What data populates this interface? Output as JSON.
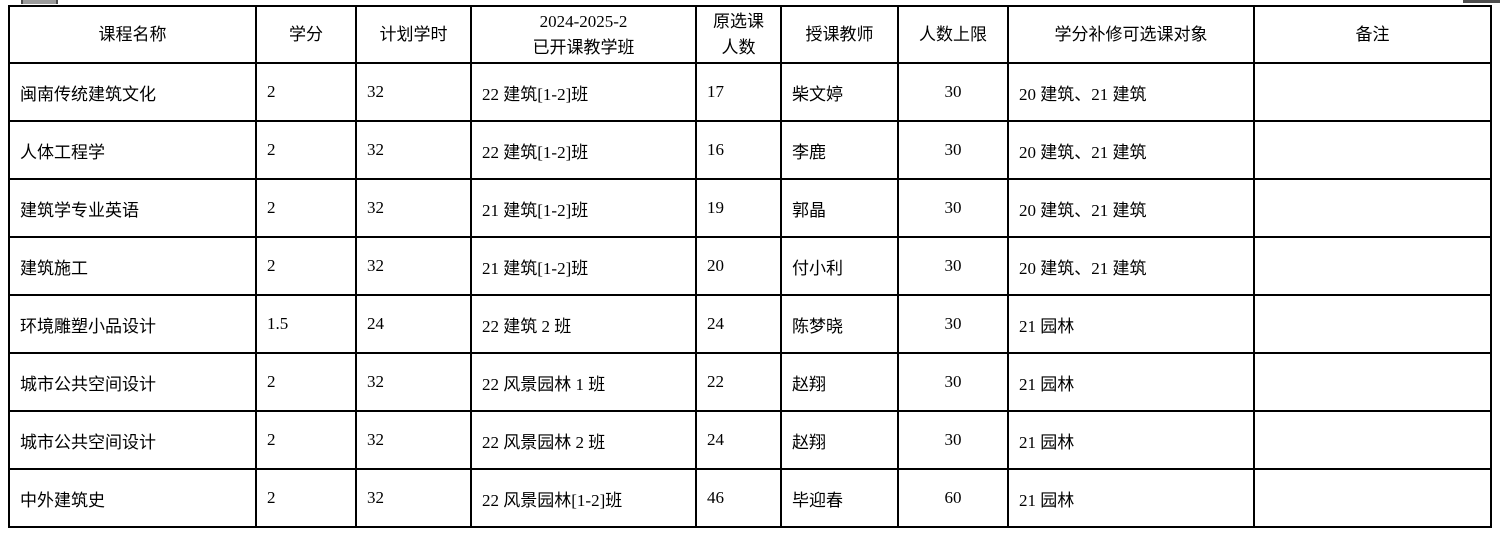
{
  "page": {
    "background": "#ffffff",
    "border_color": "#000000",
    "text_color": "#000000"
  },
  "table": {
    "header": {
      "course": "课程名称",
      "credits": "学分",
      "hours": "计划学时",
      "class_line1": "2024-2025-2",
      "class_line2": "已开课教学班",
      "enrolled_line1": "原选课",
      "enrolled_line2": "人数",
      "teacher": "授课教师",
      "cap": "人数上限",
      "eligible": "学分补修可选课对象",
      "remark": "备注"
    },
    "rows": [
      {
        "course": "闽南传统建筑文化",
        "credits": "2",
        "hours": "32",
        "class": "22 建筑[1-2]班",
        "enrolled": "17",
        "teacher": "柴文婷",
        "cap": "30",
        "eligible": "20 建筑、21 建筑",
        "remark": ""
      },
      {
        "course": "人体工程学",
        "credits": "2",
        "hours": "32",
        "class": "22 建筑[1-2]班",
        "enrolled": "16",
        "teacher": "李鹿",
        "cap": "30",
        "eligible": "20 建筑、21 建筑",
        "remark": ""
      },
      {
        "course": "建筑学专业英语",
        "credits": "2",
        "hours": "32",
        "class": "21 建筑[1-2]班",
        "enrolled": "19",
        "teacher": "郭晶",
        "cap": "30",
        "eligible": "20 建筑、21 建筑",
        "remark": ""
      },
      {
        "course": "建筑施工",
        "credits": "2",
        "hours": "32",
        "class": "21 建筑[1-2]班",
        "enrolled": "20",
        "teacher": "付小利",
        "cap": "30",
        "eligible": "20 建筑、21 建筑",
        "remark": ""
      },
      {
        "course": "环境雕塑小品设计",
        "credits": "1.5",
        "hours": "24",
        "class": "22 建筑 2 班",
        "enrolled": "24",
        "teacher": "陈梦晓",
        "cap": "30",
        "eligible": "21 园林",
        "remark": ""
      },
      {
        "course": "城市公共空间设计",
        "credits": "2",
        "hours": "32",
        "class": "22 风景园林 1 班",
        "enrolled": "22",
        "teacher": "赵翔",
        "cap": "30",
        "eligible": "21 园林",
        "remark": ""
      },
      {
        "course": "城市公共空间设计",
        "credits": "2",
        "hours": "32",
        "class": "22 风景园林 2 班",
        "enrolled": "24",
        "teacher": "赵翔",
        "cap": "30",
        "eligible": "21 园林",
        "remark": ""
      },
      {
        "course": "中外建筑史",
        "credits": "2",
        "hours": "32",
        "class": "22 风景园林[1-2]班",
        "enrolled": "46",
        "teacher": "毕迎春",
        "cap": "60",
        "eligible": "21 园林",
        "remark": ""
      }
    ]
  }
}
